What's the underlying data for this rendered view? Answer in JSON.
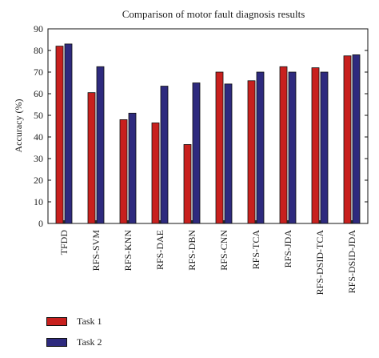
{
  "chart_data": {
    "type": "bar",
    "title": "Comparison of motor fault diagnosis results",
    "ylabel": "Accuracy (%)",
    "xlabel": "",
    "ylim": [
      0,
      90
    ],
    "yticks": [
      0,
      10,
      20,
      30,
      40,
      50,
      60,
      70,
      80,
      90
    ],
    "categories": [
      "TFDD",
      "RFS-SVM",
      "RFS-KNN",
      "RFS-DAE",
      "RFS-DBN",
      "RFS-CNN",
      "RFS-TCA",
      "RFS-JDA",
      "RFS-DSID-TCA",
      "RFS-DSID-JDA"
    ],
    "series": [
      {
        "name": "Task 1",
        "color": "#c8201e",
        "values": [
          82,
          60.5,
          48,
          46.5,
          36.5,
          70,
          66,
          72.5,
          72,
          77.5
        ]
      },
      {
        "name": "Task 2",
        "color": "#2e2a7e",
        "values": [
          83,
          72.5,
          51,
          63.5,
          65,
          64.5,
          70,
          70,
          70,
          78
        ]
      }
    ],
    "grid": false,
    "legend_position": "bottom-left"
  }
}
